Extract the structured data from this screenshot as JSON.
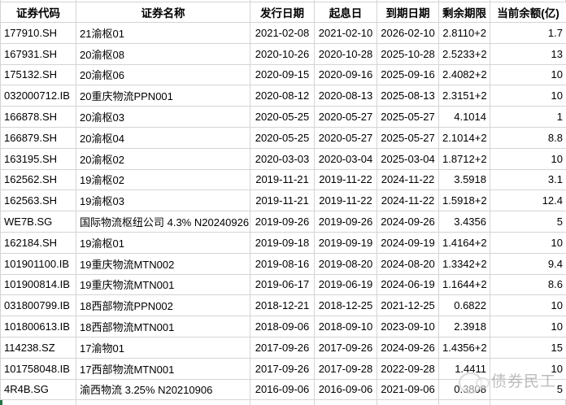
{
  "table": {
    "headers": [
      "证券代码",
      "证券名称",
      "发行日期",
      "起息日",
      "到期日期",
      "剩余期限",
      "当前余额(亿)"
    ],
    "rows": [
      [
        "177910.SH",
        "21渝枢01",
        "2021-02-08",
        "2021-02-10",
        "2026-02-10",
        "2.8110+2",
        "1.7"
      ],
      [
        "167931.SH",
        "20渝枢08",
        "2020-10-26",
        "2020-10-28",
        "2025-10-28",
        "2.5233+2",
        "13"
      ],
      [
        "175132.SH",
        "20渝枢06",
        "2020-09-15",
        "2020-09-16",
        "2025-09-16",
        "2.4082+2",
        "10"
      ],
      [
        "032000712.IB",
        "20重庆物流PPN001",
        "2020-08-12",
        "2020-08-13",
        "2025-08-13",
        "2.3151+2",
        "10"
      ],
      [
        "166878.SH",
        "20渝枢03",
        "2020-05-25",
        "2020-05-27",
        "2025-05-27",
        "4.1014",
        "1"
      ],
      [
        "166879.SH",
        "20渝枢04",
        "2020-05-25",
        "2020-05-27",
        "2025-05-27",
        "2.1014+2",
        "8.8"
      ],
      [
        "163195.SH",
        "20渝枢02",
        "2020-03-03",
        "2020-03-04",
        "2025-03-04",
        "1.8712+2",
        "10"
      ],
      [
        "162562.SH",
        "19渝枢02",
        "2019-11-21",
        "2019-11-22",
        "2024-11-22",
        "3.5918",
        "3.1"
      ],
      [
        "162563.SH",
        "19渝枢03",
        "2019-11-21",
        "2019-11-22",
        "2024-11-22",
        "1.5918+2",
        "12.4"
      ],
      [
        "WE7B.SG",
        "国际物流枢纽公司 4.3% N20240926",
        "2019-09-26",
        "2019-09-26",
        "2024-09-26",
        "3.4356",
        "5"
      ],
      [
        "162184.SH",
        "19渝枢01",
        "2019-09-18",
        "2019-09-19",
        "2024-09-19",
        "1.4164+2",
        "10"
      ],
      [
        "101901100.IB",
        "19重庆物流MTN002",
        "2019-08-16",
        "2019-08-20",
        "2024-08-20",
        "1.3342+2",
        "9.4"
      ],
      [
        "101900814.IB",
        "19重庆物流MTN001",
        "2019-06-17",
        "2019-06-19",
        "2024-06-19",
        "1.1644+2",
        "8.6"
      ],
      [
        "031800799.IB",
        "18西部物流PPN002",
        "2018-12-21",
        "2018-12-25",
        "2021-12-25",
        "0.6822",
        "10"
      ],
      [
        "101800613.IB",
        "18西部物流MTN001",
        "2018-09-06",
        "2018-09-10",
        "2023-09-10",
        "2.3918",
        "10"
      ],
      [
        "114238.SZ",
        "17渝物01",
        "2017-09-26",
        "2017-09-26",
        "2024-09-26",
        "1.4356+2",
        "15"
      ],
      [
        "101758048.IB",
        "17西部物流MTN001",
        "2017-09-26",
        "2017-09-28",
        "2022-09-28",
        "1.4411",
        "10"
      ],
      [
        "4R4B.SG",
        "渝西物流 3.25% N20210906",
        "2016-09-06",
        "2016-09-06",
        "2021-09-06",
        "0.3808",
        "5"
      ]
    ]
  },
  "watermark": {
    "text": "债券民工"
  },
  "colors": {
    "gridline": "#d4d4d4",
    "cell_text": "#000000",
    "background": "#ffffff",
    "watermark_text": "#919191",
    "green_fragment": "#217346"
  }
}
